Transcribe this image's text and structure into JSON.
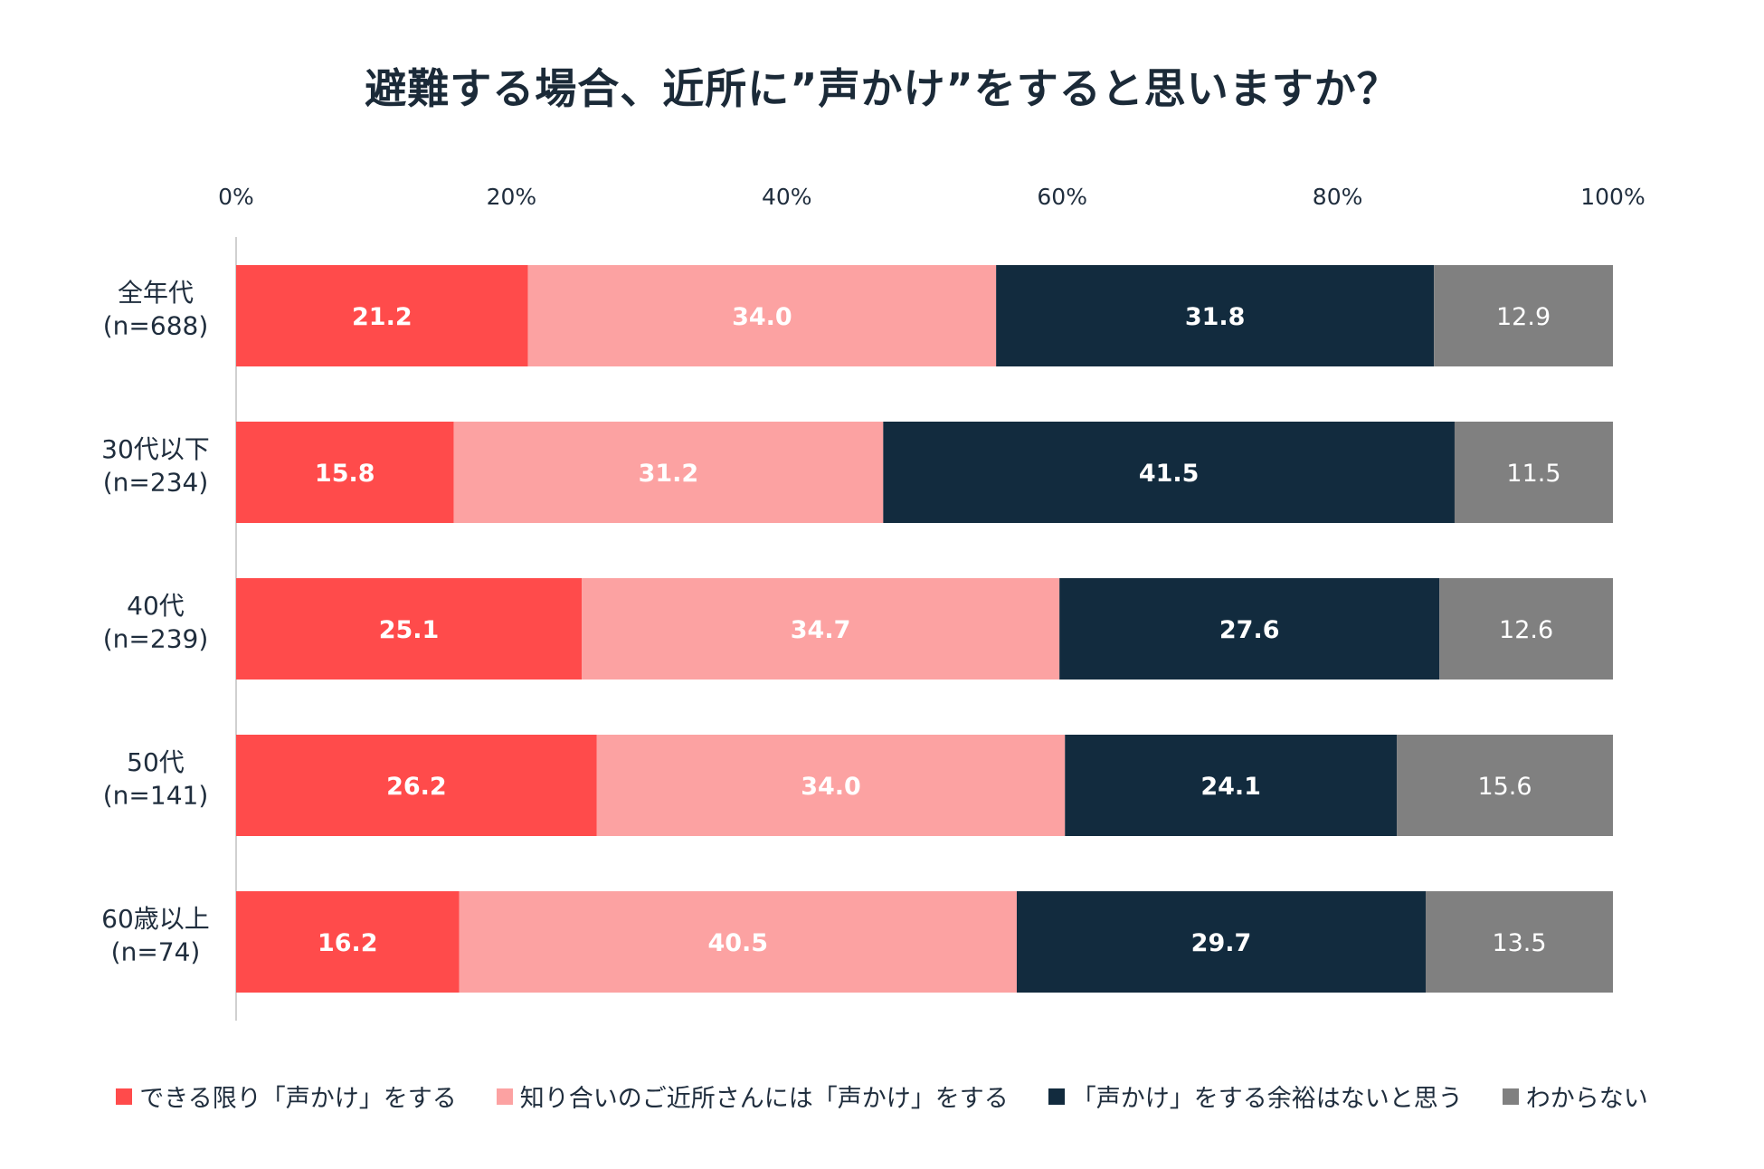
{
  "chart_data": {
    "type": "bar",
    "orientation": "horizontal",
    "stacked": true,
    "title": "避難する場合、近所に”声かけ”をすると思いますか？",
    "categories": [
      "全年代\n(n=688)",
      "30代以下\n(n=234)",
      "40代\n(n=239)",
      "50代\n(n=141)",
      "60歳以上\n(n=74)"
    ],
    "series": [
      {
        "name": "できる限り「声かけ」をする",
        "color": "#ff4b4b",
        "label_color": "#ffffff",
        "bold": true,
        "values": [
          21.2,
          15.8,
          25.1,
          26.2,
          16.2
        ]
      },
      {
        "name": "知り合いのご近所さんには「声かけ」をする",
        "color": "#fca2a2",
        "label_color": "#ffffff",
        "bold": true,
        "values": [
          34.0,
          31.2,
          34.7,
          34.0,
          40.5
        ]
      },
      {
        "name": "「声かけ」をする余裕はないと思う",
        "color": "#122b3e",
        "label_color": "#ffffff",
        "bold": true,
        "values": [
          31.8,
          41.5,
          27.6,
          24.1,
          29.7
        ]
      },
      {
        "name": "わからない",
        "color": "#808080",
        "label_color": "#ffffff",
        "bold": false,
        "values": [
          12.9,
          11.5,
          12.6,
          15.6,
          13.5
        ]
      }
    ],
    "xlim": [
      0,
      100
    ],
    "xticks": [
      "0%",
      "20%",
      "40%",
      "60%",
      "80%",
      "100%"
    ],
    "grid": false,
    "legend_position": "bottom"
  }
}
